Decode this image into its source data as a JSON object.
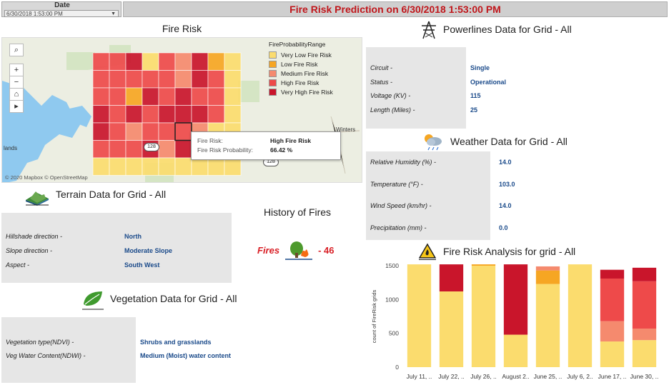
{
  "header": {
    "date_label": "Date",
    "date_value": "6/30/2018 1:53:00 PM",
    "title": "Fire Risk Prediction on 6/30/2018 1:53:00 PM"
  },
  "fire_risk": {
    "title": "Fire Risk",
    "legend_title": "FireProbabilityRange",
    "legend": [
      {
        "label": "Very Low Fire Risk",
        "color": "#fbdc6e"
      },
      {
        "label": "Low Fire Risk",
        "color": "#f6a623"
      },
      {
        "label": "Medium Fire Risk",
        "color": "#f58a6e"
      },
      {
        "label": "High Fire Risk",
        "color": "#ee4a4a"
      },
      {
        "label": "Very High Fire Risk",
        "color": "#c9152b"
      }
    ],
    "tooltip": {
      "risk_key": "Fire Risk:",
      "risk_value": "High Fire Risk",
      "prob_key": "Fire Risk Probability:",
      "prob_value": "66.42 %"
    },
    "credit": "© 2020 Mapbox © OpenStreetMap",
    "places": {
      "winters": "Winters",
      "lands": "lands"
    },
    "roads": {
      "r1": "128",
      "r2": "128"
    },
    "controls": {
      "search": "⌕",
      "zoom_in": "+",
      "zoom_out": "−",
      "home": "⌂",
      "play": "▸"
    }
  },
  "terrain": {
    "title": "Terrain Data for Grid - All",
    "rows": [
      {
        "key": "Hillshade direction  -",
        "value": "North"
      },
      {
        "key": "Slope direction  -",
        "value": "Moderate Slope"
      },
      {
        "key": "Aspect  -",
        "value": "South West"
      }
    ]
  },
  "history": {
    "title": "History of Fires",
    "label": "Fires",
    "count": "- 46"
  },
  "vegetation": {
    "title": "Vegetation Data for Grid - All",
    "rows": [
      {
        "key": "Vegetation type(NDVI)  -",
        "value": "Shrubs and grasslands"
      },
      {
        "key": "Veg Water Content(NDWI)  -",
        "value": "Medium (Moist) water content"
      }
    ]
  },
  "powerlines": {
    "title": "Powerlines Data for Grid - All",
    "rows": [
      {
        "key": "Circuit  -",
        "value": "Single"
      },
      {
        "key": "Status  -",
        "value": "Operational"
      },
      {
        "key": "Voltage (KV)  -",
        "value": "115"
      },
      {
        "key": "Length (Miles)  -",
        "value": "25"
      }
    ]
  },
  "weather": {
    "title": "Weather Data for Grid - All",
    "rows": [
      {
        "key": "Relative Humidity (%)  -",
        "value": "14.0"
      },
      {
        "key": "Temperature (°F)  -",
        "value": "103.0"
      },
      {
        "key": "Wind Speed (km/hr)  -",
        "value": "14.0"
      },
      {
        "key": "Precipitation (mm)  -",
        "value": "0.0"
      }
    ]
  },
  "analysis": {
    "title": "Fire Risk Analysis for grid - All"
  },
  "chart_data": {
    "type": "bar",
    "stacked": true,
    "ylabel": "count of FireRisk grids",
    "ylim": [
      0,
      1500
    ],
    "yticks": [
      0,
      500,
      1000,
      1500
    ],
    "categories": [
      "July 11, ..",
      "July 22, ..",
      "July 26, ..",
      "August 2..",
      "June 25, ..",
      "July 6, 2..",
      "June 17, ..",
      "June 30, .."
    ],
    "series": [
      {
        "name": "Very Low Fire Risk",
        "color": "#fbdc6e",
        "values": [
          1520,
          1120,
          1500,
          480,
          1230,
          1520,
          380,
          400
        ]
      },
      {
        "name": "Low Fire Risk",
        "color": "#f6a623",
        "values": [
          0,
          0,
          20,
          0,
          200,
          0,
          0,
          0
        ]
      },
      {
        "name": "Medium Fire Risk",
        "color": "#f58a6e",
        "values": [
          0,
          0,
          0,
          0,
          60,
          0,
          300,
          170
        ]
      },
      {
        "name": "High Fire Risk",
        "color": "#ee4a4a",
        "values": [
          0,
          0,
          0,
          0,
          0,
          0,
          630,
          700
        ]
      },
      {
        "name": "Very High Fire Risk",
        "color": "#c9152b",
        "values": [
          0,
          400,
          0,
          1040,
          0,
          0,
          130,
          200
        ]
      }
    ]
  }
}
